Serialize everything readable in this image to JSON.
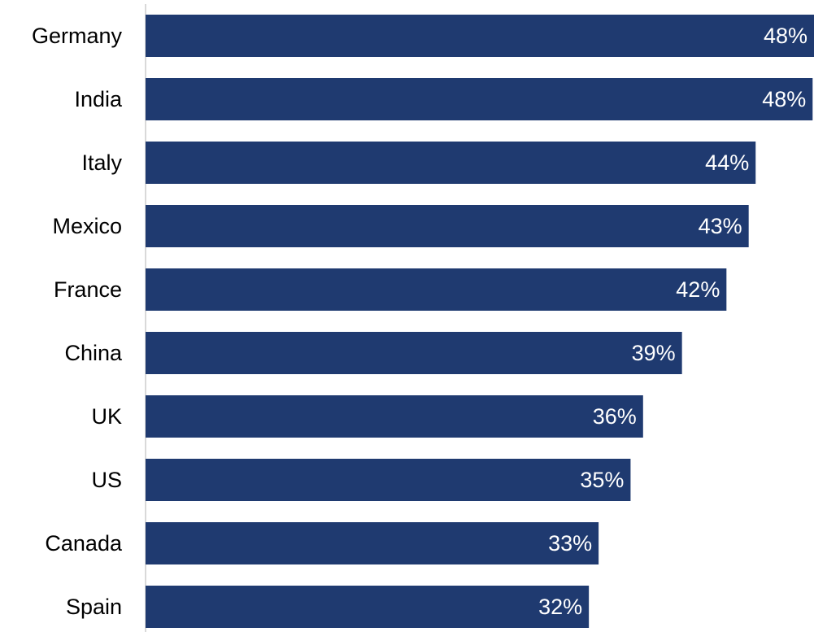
{
  "colors": {
    "bar": "#1f3a70",
    "axis": "#d9d9d9"
  },
  "chart_data": {
    "type": "bar",
    "orientation": "horizontal",
    "categories": [
      "Germany",
      "India",
      "Italy",
      "Mexico",
      "France",
      "China",
      "UK",
      "US",
      "Canada",
      "Spain"
    ],
    "values": [
      48.1,
      48.0,
      43.9,
      43.4,
      41.8,
      38.6,
      35.8,
      34.9,
      32.6,
      31.9
    ],
    "data_labels": [
      "48%",
      "48%",
      "44%",
      "43%",
      "42%",
      "39%",
      "36%",
      "35%",
      "33%",
      "32%"
    ],
    "value_unit": "%",
    "xlim": [
      0,
      48.1
    ],
    "grid": false,
    "legend": "none"
  }
}
